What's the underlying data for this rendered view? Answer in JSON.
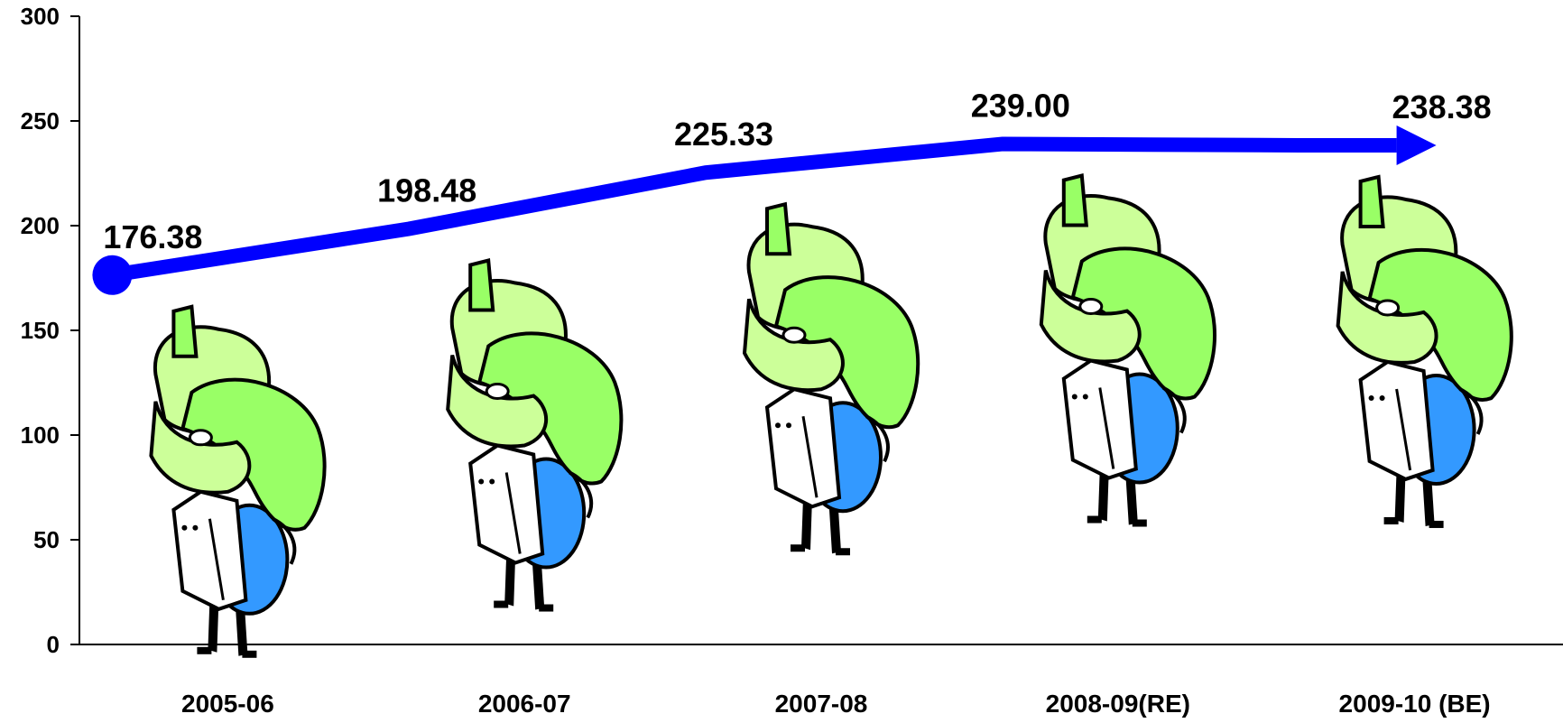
{
  "chart_data": {
    "type": "line",
    "title": "",
    "xlabel": "",
    "ylabel": "",
    "categories": [
      "2005-06",
      "2006-07",
      "2007-08",
      "2008-09(RE)",
      "2009-10 (BE)"
    ],
    "series": [
      {
        "values": [
          176.38,
          198.48,
          225.33,
          239.0,
          238.38
        ]
      }
    ],
    "data_labels": [
      "176.38",
      "198.48",
      "225.33",
      "239.00",
      "238.38"
    ],
    "ylim": [
      0,
      300
    ],
    "yticks": [
      "0",
      "50",
      "100",
      "150",
      "200",
      "250",
      "300"
    ],
    "grid": false,
    "legend": "none",
    "line_color": "#0000ff",
    "decoration": "cartoon figure carrying money-bag icon above each category",
    "figure_colors": {
      "bag": "#99ff66",
      "coat": "#3399ff",
      "outline": "#000000"
    }
  }
}
